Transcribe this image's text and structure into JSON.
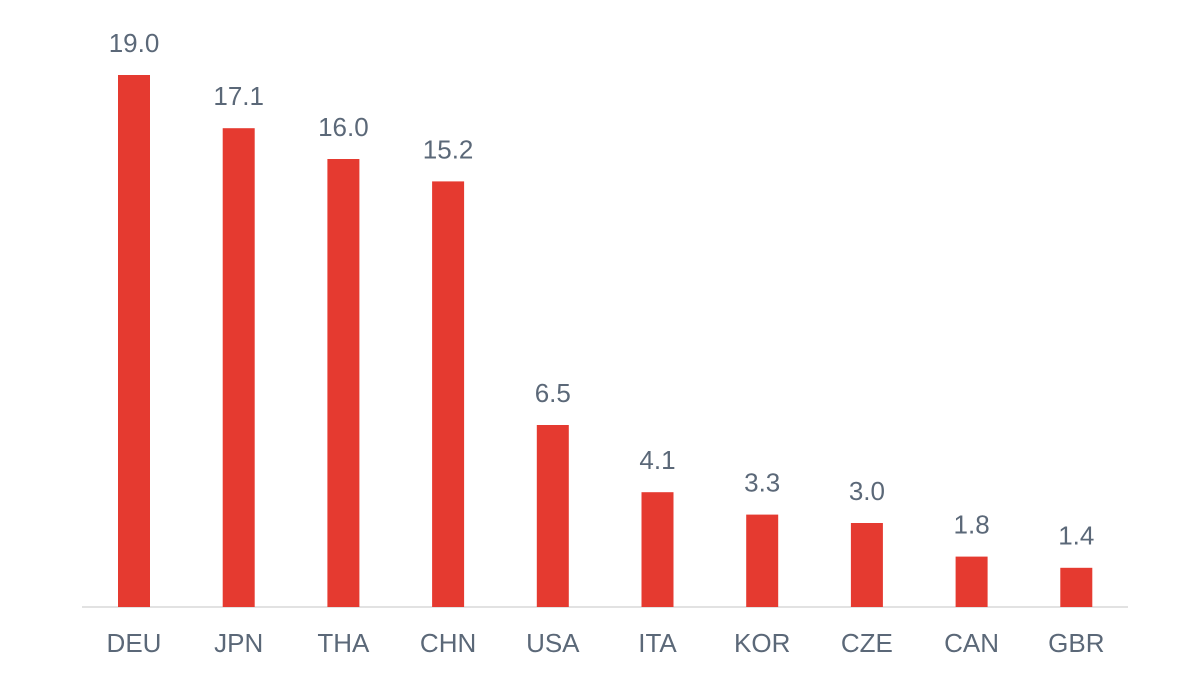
{
  "chart_data": {
    "type": "bar",
    "categories": [
      "DEU",
      "JPN",
      "THA",
      "CHN",
      "USA",
      "ITA",
      "KOR",
      "CZE",
      "CAN",
      "GBR"
    ],
    "values": [
      19.0,
      17.1,
      16.0,
      15.2,
      6.5,
      4.1,
      3.3,
      3.0,
      1.8,
      1.4
    ],
    "value_labels": [
      "19.0",
      "17.1",
      "16.0",
      "15.2",
      "6.5",
      "4.1",
      "3.3",
      "3.0",
      "1.8",
      "1.4"
    ],
    "color": "#e53a30"
  }
}
